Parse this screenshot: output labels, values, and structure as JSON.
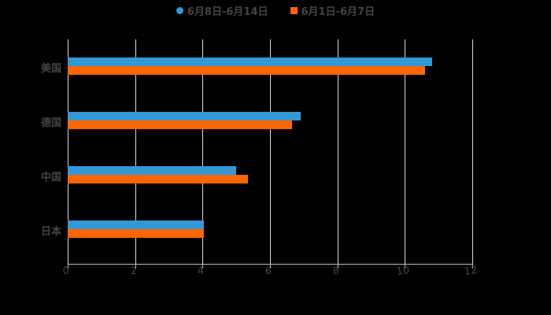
{
  "chart_data": {
    "type": "bar",
    "orientation": "horizontal",
    "categories": [
      "美国",
      "德国",
      "中国",
      "日本"
    ],
    "series": [
      {
        "name": "6月8日-6月14日",
        "color": "#3498d6",
        "values": [
          10.8,
          6.9,
          5.0,
          4.05
        ]
      },
      {
        "name": "6月1日-6月7日",
        "color": "#ff6600",
        "values": [
          10.6,
          6.65,
          5.35,
          4.05
        ]
      }
    ],
    "xlim": [
      0,
      12
    ],
    "xticks": [
      "0",
      "2",
      "4",
      "6",
      "8",
      "10",
      "12"
    ],
    "grid": true,
    "legend_position": "top",
    "title": "",
    "xlabel": "",
    "ylabel": ""
  },
  "legend": {
    "series_a": "6月8日-6月14日",
    "series_b": "6月1日-6月7日"
  }
}
